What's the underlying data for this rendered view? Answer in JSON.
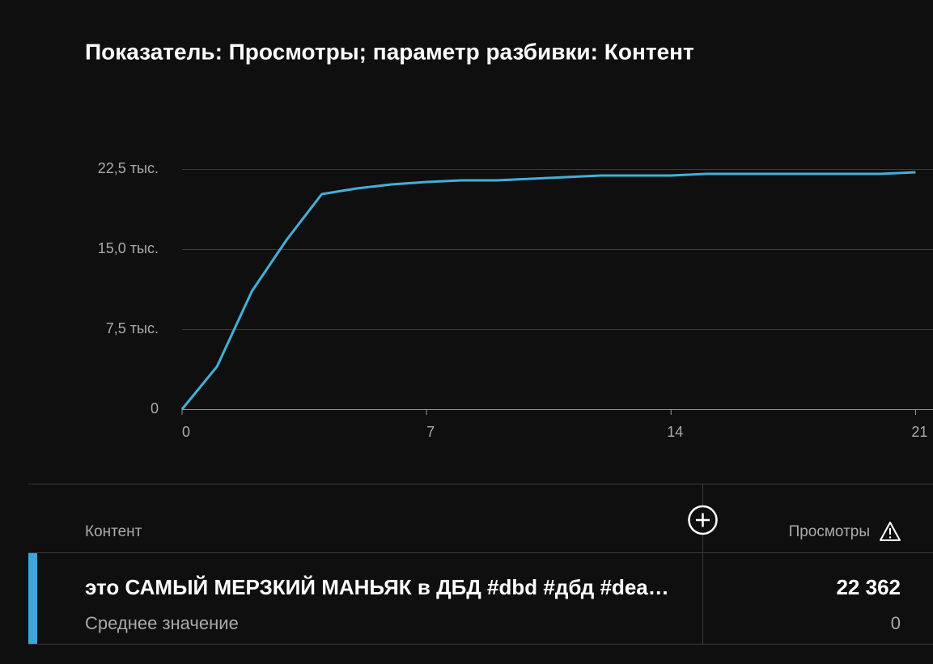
{
  "chart_data": {
    "type": "line",
    "title": "Показатель: Просмотры; параметр разбивки: Контент",
    "x": [
      0,
      1,
      2,
      3,
      4,
      5,
      6,
      7,
      8,
      9,
      10,
      11,
      12,
      13,
      14,
      15,
      16,
      17,
      18,
      19,
      20,
      21
    ],
    "values": [
      0,
      4000,
      11060,
      15900,
      20150,
      20680,
      21060,
      21290,
      21440,
      21440,
      21590,
      21740,
      21890,
      21890,
      21890,
      22050,
      22050,
      22050,
      22050,
      22050,
      22050,
      22200
    ],
    "color": "#41b0d8",
    "xlim": [
      0,
      21.5
    ],
    "xticks": [
      0,
      7,
      14,
      21
    ],
    "ylim": [
      0,
      22500
    ],
    "yticks": [
      0,
      {
        "value": 7500,
        "label": "7,5 тыс."
      },
      {
        "value": 15000,
        "label": "15,0 тыс."
      },
      {
        "value": 22500,
        "label": "22,5 тыс."
      }
    ],
    "grid": true
  },
  "table": {
    "header": [
      "Контент",
      "Просмотры"
    ],
    "rows": [
      [
        "это САМЫЙ МЕРЗКИЙ МАНЬЯК в ДБД #dbd #дбд #dea…",
        "22 362"
      ],
      [
        "Среднее значение",
        "0"
      ]
    ]
  }
}
